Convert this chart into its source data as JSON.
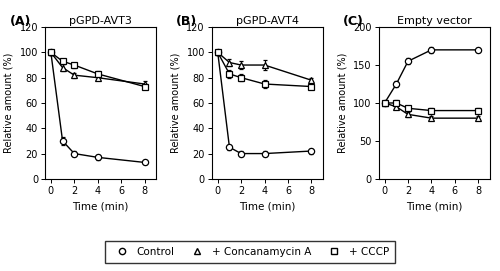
{
  "panels": [
    {
      "label": "(A)",
      "title": "pGPD-AVT3",
      "ylim": [
        0,
        120
      ],
      "yticks": [
        0,
        20,
        40,
        60,
        80,
        100,
        120
      ],
      "ylabel": "Relative amount (%)",
      "time": [
        0,
        1,
        2,
        4,
        8
      ],
      "control": [
        100,
        30,
        20,
        17,
        13
      ],
      "control_err": [
        2,
        3,
        2,
        2,
        1
      ],
      "concan": [
        100,
        88,
        82,
        80,
        75
      ],
      "concan_err": [
        2,
        3,
        2,
        2,
        2
      ],
      "cccp": [
        100,
        93,
        90,
        83,
        73
      ],
      "cccp_err": [
        2,
        2,
        2,
        2,
        2
      ]
    },
    {
      "label": "(B)",
      "title": "pGPD-AVT4",
      "ylim": [
        0,
        120
      ],
      "yticks": [
        0,
        20,
        40,
        60,
        80,
        100,
        120
      ],
      "ylabel": "Relative amount (%)",
      "time": [
        0,
        1,
        2,
        4,
        8
      ],
      "control": [
        100,
        25,
        20,
        20,
        22
      ],
      "control_err": [
        2,
        2,
        2,
        2,
        2
      ],
      "concan": [
        100,
        92,
        90,
        90,
        78
      ],
      "concan_err": [
        2,
        3,
        3,
        4,
        2
      ],
      "cccp": [
        100,
        83,
        80,
        75,
        73
      ],
      "cccp_err": [
        2,
        3,
        3,
        3,
        2
      ]
    },
    {
      "label": "(C)",
      "title": "Empty vector",
      "ylim": [
        0,
        200
      ],
      "yticks": [
        0,
        50,
        100,
        150,
        200
      ],
      "ylabel": "Relative amount (%)",
      "time": [
        0,
        1,
        2,
        4,
        8
      ],
      "control": [
        100,
        125,
        155,
        170,
        170
      ],
      "control_err": [
        3,
        4,
        4,
        4,
        3
      ],
      "concan": [
        100,
        95,
        85,
        80,
        80
      ],
      "concan_err": [
        3,
        3,
        3,
        3,
        3
      ],
      "cccp": [
        100,
        100,
        93,
        90,
        90
      ],
      "cccp_err": [
        3,
        4,
        3,
        3,
        3
      ]
    }
  ],
  "legend_items": [
    "Control",
    "+ Concanamycin A",
    "+ CCCP"
  ],
  "xlabel": "Time (min)",
  "line_color": "black",
  "marker_control": "o",
  "marker_concan": "^",
  "marker_cccp": "s",
  "markersize": 4.5,
  "linewidth": 1.0
}
